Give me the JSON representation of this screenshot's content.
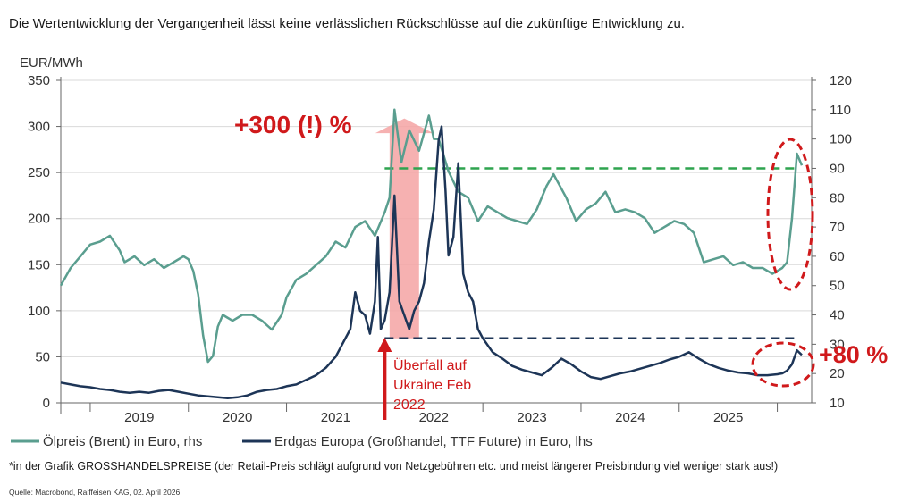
{
  "disclaimer": "Die Wertentwicklung der Vergangenheit lässt keine verlässlichen Rückschlüsse auf die zukünftige Entwicklung zu.",
  "footnote": "*in der Grafik GROSSHANDELSPREISE (der Retail-Preis schlägt aufgrund von Netzgebühren etc. und meist längerer Preisbindung viel weniger stark aus!)",
  "source": "Quelle: Macrobond, Raiffeisen KAG, 02. April 2026",
  "colors": {
    "oil": "#5a9e8f",
    "gas": "#1d3557",
    "red": "#d0191b",
    "green_ref": "#2ea44f",
    "navy_ref": "#1d3557",
    "shade": "#f4a3a3"
  },
  "chart_data": {
    "type": "line",
    "left_axis_unit": "EUR/MWh",
    "ylim_left": [
      0,
      350
    ],
    "yticks_left": [
      "0",
      "50",
      "100",
      "150",
      "200",
      "250",
      "300",
      "350"
    ],
    "ylim_right": [
      10,
      120
    ],
    "yticks_right": [
      "10",
      "20",
      "30",
      "40",
      "50",
      "60",
      "70",
      "80",
      "90",
      "100",
      "110",
      "120"
    ],
    "x_tick_labels": [
      "2019",
      "2020",
      "2021",
      "2022",
      "2023",
      "2024",
      "2025"
    ],
    "xlim": [
      2018.7,
      2026.35
    ],
    "grid": true,
    "legend_position": "bottom",
    "series": [
      {
        "name": "Ölpreis (Brent) in Euro, rhs",
        "axis": "right",
        "x": [
          2018.7,
          2018.8,
          2018.9,
          2019.0,
          2019.1,
          2019.2,
          2019.3,
          2019.35,
          2019.45,
          2019.55,
          2019.65,
          2019.75,
          2019.85,
          2019.95,
          2020.0,
          2020.05,
          2020.1,
          2020.15,
          2020.2,
          2020.25,
          2020.3,
          2020.35,
          2020.45,
          2020.55,
          2020.65,
          2020.75,
          2020.85,
          2020.95,
          2021.0,
          2021.1,
          2021.2,
          2021.3,
          2021.4,
          2021.5,
          2021.6,
          2021.7,
          2021.8,
          2021.9,
          2022.0,
          2022.05,
          2022.1,
          2022.17,
          2022.25,
          2022.35,
          2022.45,
          2022.5,
          2022.55,
          2022.65,
          2022.75,
          2022.85,
          2022.95,
          2023.05,
          2023.15,
          2023.25,
          2023.35,
          2023.45,
          2023.55,
          2023.65,
          2023.72,
          2023.85,
          2023.95,
          2024.05,
          2024.15,
          2024.25,
          2024.35,
          2024.45,
          2024.55,
          2024.65,
          2024.75,
          2024.85,
          2024.95,
          2025.05,
          2025.15,
          2025.25,
          2025.35,
          2025.45,
          2025.55,
          2025.65,
          2025.75,
          2025.85,
          2025.95,
          2026.0,
          2026.05,
          2026.1,
          2026.15,
          2026.2,
          2026.25
        ],
        "values": [
          50,
          56,
          60,
          64,
          65,
          67,
          62,
          58,
          60,
          57,
          59,
          56,
          58,
          60,
          59,
          55,
          47,
          33,
          24,
          26,
          36,
          40,
          38,
          40,
          40,
          38,
          35,
          40,
          46,
          52,
          54,
          57,
          60,
          65,
          63,
          70,
          72,
          67,
          75,
          80,
          110,
          92,
          103,
          96,
          108,
          100,
          100,
          89,
          82,
          80,
          72,
          77,
          75,
          73,
          72,
          71,
          76,
          84,
          88,
          80,
          72,
          76,
          78,
          82,
          75,
          76,
          75,
          73,
          68,
          70,
          72,
          71,
          68,
          58,
          59,
          60,
          57,
          58,
          56,
          56,
          54,
          55,
          56,
          58,
          73,
          95,
          91
        ]
      },
      {
        "name": "Erdgas Europa (Großhandel, TTF Future) in Euro, lhs",
        "axis": "left",
        "x": [
          2018.7,
          2018.8,
          2018.9,
          2019.0,
          2019.1,
          2019.2,
          2019.3,
          2019.4,
          2019.5,
          2019.6,
          2019.7,
          2019.8,
          2019.9,
          2020.0,
          2020.1,
          2020.2,
          2020.3,
          2020.4,
          2020.5,
          2020.6,
          2020.7,
          2020.8,
          2020.9,
          2021.0,
          2021.1,
          2021.2,
          2021.3,
          2021.4,
          2021.5,
          2021.6,
          2021.65,
          2021.7,
          2021.75,
          2021.8,
          2021.85,
          2021.9,
          2021.93,
          2021.96,
          2022.0,
          2022.05,
          2022.1,
          2022.15,
          2022.2,
          2022.25,
          2022.3,
          2022.35,
          2022.4,
          2022.45,
          2022.5,
          2022.55,
          2022.58,
          2022.62,
          2022.65,
          2022.7,
          2022.75,
          2022.8,
          2022.85,
          2022.9,
          2022.95,
          2023.0,
          2023.1,
          2023.2,
          2023.3,
          2023.4,
          2023.5,
          2023.6,
          2023.7,
          2023.8,
          2023.9,
          2024.0,
          2024.1,
          2024.2,
          2024.3,
          2024.4,
          2024.5,
          2024.6,
          2024.7,
          2024.8,
          2024.9,
          2025.0,
          2025.1,
          2025.2,
          2025.3,
          2025.4,
          2025.5,
          2025.6,
          2025.7,
          2025.8,
          2025.9,
          2026.0,
          2026.05,
          2026.1,
          2026.15,
          2026.2,
          2026.25
        ],
        "values": [
          22,
          20,
          18,
          17,
          15,
          14,
          12,
          11,
          12,
          11,
          13,
          14,
          12,
          10,
          8,
          7,
          6,
          5,
          6,
          8,
          12,
          14,
          15,
          18,
          20,
          25,
          30,
          38,
          50,
          70,
          80,
          120,
          100,
          95,
          75,
          110,
          180,
          80,
          90,
          120,
          225,
          110,
          95,
          80,
          100,
          110,
          130,
          175,
          210,
          285,
          300,
          230,
          160,
          180,
          260,
          140,
          120,
          110,
          80,
          70,
          55,
          48,
          40,
          36,
          33,
          30,
          38,
          48,
          42,
          34,
          28,
          26,
          29,
          32,
          34,
          37,
          40,
          43,
          47,
          50,
          55,
          48,
          42,
          38,
          35,
          33,
          32,
          30,
          30,
          31,
          32,
          35,
          42,
          57,
          52
        ]
      }
    ],
    "reference_lines": [
      {
        "axis": "right",
        "value": 90,
        "from_x": 2022.0,
        "to_x": 2026.2,
        "style": "dashed",
        "color": "#2ea44f"
      },
      {
        "axis": "left",
        "value": 70,
        "from_x": 2022.0,
        "to_x": 2026.2,
        "style": "dashed",
        "color": "#1d3557"
      }
    ],
    "shaded_region": {
      "from_x": 2022.05,
      "to_x": 2022.35
    },
    "annotations": [
      {
        "text": "+300 (!) %"
      },
      {
        "text": "Überfall auf"
      },
      {
        "text": "Ukraine Feb"
      },
      {
        "text": "2022"
      },
      {
        "text": "+80 %"
      }
    ]
  }
}
